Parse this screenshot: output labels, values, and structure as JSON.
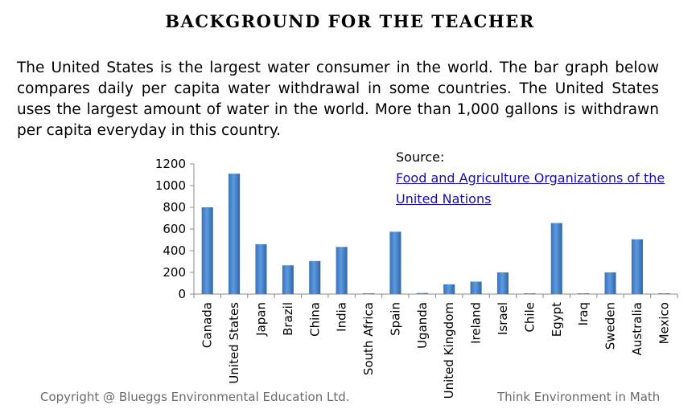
{
  "heading": "BACKGROUND FOR THE TEACHER",
  "paragraph": "The United States is the largest water consumer in the world. The bar graph below compares daily per capita water withdrawal in some countries. The United States uses the largest amount of water in the world. More than 1,000 gallons is withdrawn per capita everyday in this country.",
  "source": {
    "label": "Source:",
    "link_text": "Food and Agriculture Organizations of the United Nations "
  },
  "footer": {
    "copyright": "Copyright @ Blueggs Environmental Education Ltd.",
    "tagline": "Think Environment in Math"
  },
  "colors": {
    "bar": "#4a86cc",
    "link": "#1a0dab"
  },
  "chart_data": {
    "type": "bar",
    "categories": [
      "Canada",
      "United States",
      "Japan",
      "Brazil",
      "China",
      "India",
      "South Africa",
      "Spain",
      "Uganda",
      "United Kingdom",
      "Ireland",
      "Israel",
      "Chile",
      "Egypt",
      "Iraq",
      "Sweden",
      "Australia",
      "Mexico"
    ],
    "values": [
      800,
      1110,
      460,
      265,
      305,
      435,
      5,
      575,
      10,
      90,
      115,
      200,
      5,
      655,
      5,
      200,
      505,
      5
    ],
    "ylim": [
      0,
      1200
    ],
    "yticks": [
      "0",
      "200",
      "400",
      "600",
      "800",
      "1000",
      "1200"
    ],
    "grid": false,
    "legend": "none"
  }
}
